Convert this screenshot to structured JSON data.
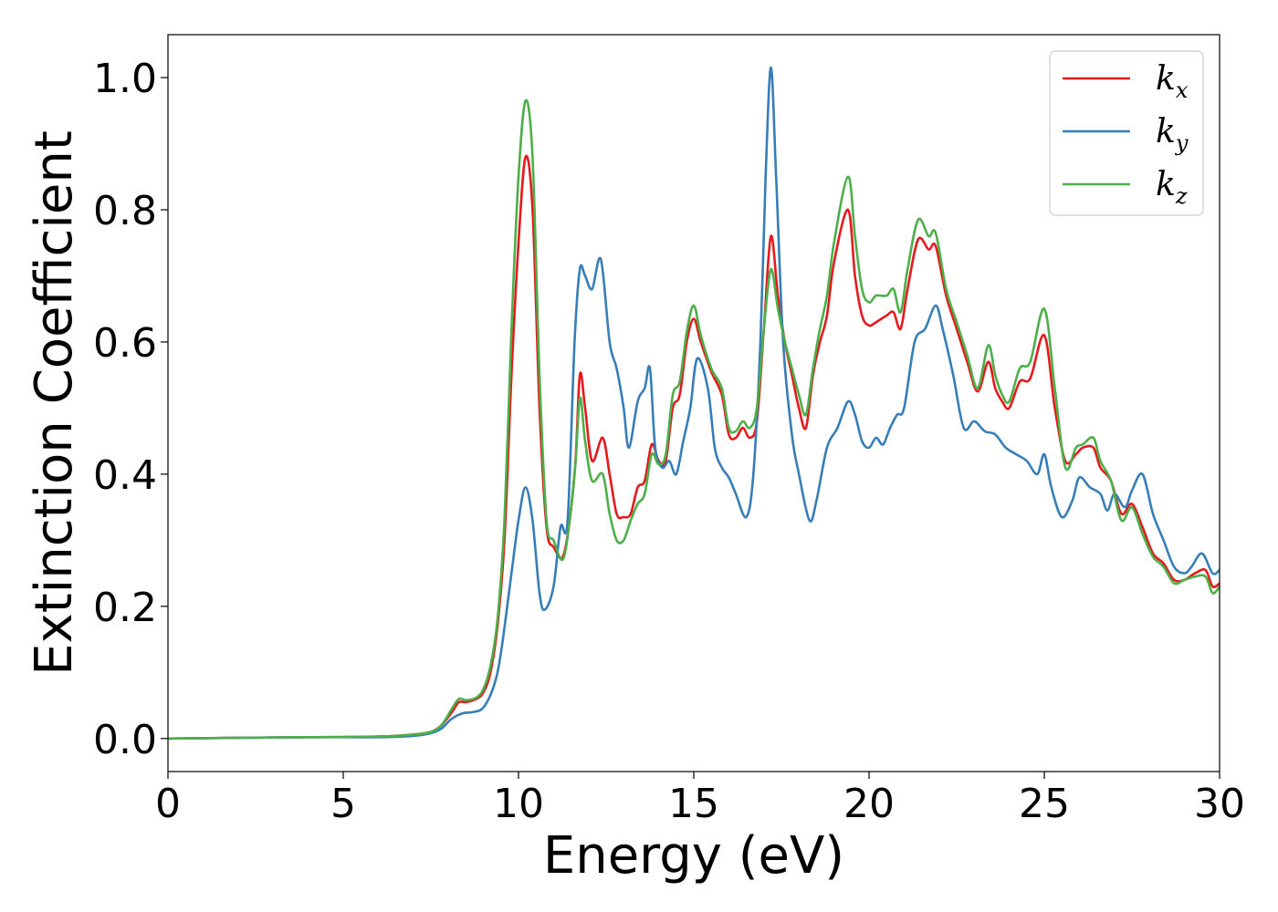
{
  "chart_data": {
    "type": "line",
    "title": "",
    "xlabel": "Energy (eV)",
    "ylabel": "Extinction Coefficient",
    "xlim": [
      0,
      30
    ],
    "ylim": [
      -0.05,
      1.065
    ],
    "xticks": [
      "0",
      "5",
      "10",
      "15",
      "20",
      "25",
      "30"
    ],
    "yticks": [
      "0.0",
      "0.2",
      "0.4",
      "0.6",
      "0.8",
      "1.0"
    ],
    "grid": false,
    "legend_position": "top-right",
    "series": [
      {
        "name": "k_x",
        "legend_base": "k",
        "legend_sub": "x",
        "color": "#e41a1c",
        "points": [
          [
            0,
            0
          ],
          [
            2,
            0.001
          ],
          [
            4,
            0.002
          ],
          [
            6,
            0.003
          ],
          [
            7,
            0.006
          ],
          [
            7.5,
            0.01
          ],
          [
            7.8,
            0.02
          ],
          [
            8.1,
            0.04
          ],
          [
            8.3,
            0.055
          ],
          [
            8.5,
            0.055
          ],
          [
            8.8,
            0.06
          ],
          [
            9.0,
            0.07
          ],
          [
            9.2,
            0.1
          ],
          [
            9.4,
            0.17
          ],
          [
            9.6,
            0.3
          ],
          [
            9.8,
            0.55
          ],
          [
            10.0,
            0.75
          ],
          [
            10.2,
            0.88
          ],
          [
            10.4,
            0.8
          ],
          [
            10.6,
            0.5
          ],
          [
            10.8,
            0.32
          ],
          [
            11.0,
            0.29
          ],
          [
            11.3,
            0.28
          ],
          [
            11.6,
            0.4
          ],
          [
            11.75,
            0.55
          ],
          [
            11.9,
            0.5
          ],
          [
            12.1,
            0.42
          ],
          [
            12.4,
            0.455
          ],
          [
            12.6,
            0.4
          ],
          [
            12.8,
            0.34
          ],
          [
            13.0,
            0.335
          ],
          [
            13.2,
            0.34
          ],
          [
            13.4,
            0.38
          ],
          [
            13.6,
            0.39
          ],
          [
            13.8,
            0.445
          ],
          [
            14.0,
            0.42
          ],
          [
            14.2,
            0.42
          ],
          [
            14.4,
            0.5
          ],
          [
            14.6,
            0.52
          ],
          [
            14.8,
            0.6
          ],
          [
            15.0,
            0.635
          ],
          [
            15.2,
            0.6
          ],
          [
            15.5,
            0.555
          ],
          [
            15.8,
            0.52
          ],
          [
            16.0,
            0.46
          ],
          [
            16.2,
            0.455
          ],
          [
            16.4,
            0.47
          ],
          [
            16.6,
            0.455
          ],
          [
            16.8,
            0.48
          ],
          [
            17.0,
            0.62
          ],
          [
            17.2,
            0.76
          ],
          [
            17.4,
            0.67
          ],
          [
            17.6,
            0.6
          ],
          [
            17.8,
            0.55
          ],
          [
            18.0,
            0.5
          ],
          [
            18.2,
            0.47
          ],
          [
            18.4,
            0.55
          ],
          [
            18.6,
            0.6
          ],
          [
            18.8,
            0.64
          ],
          [
            19.0,
            0.72
          ],
          [
            19.4,
            0.8
          ],
          [
            19.6,
            0.7
          ],
          [
            19.8,
            0.64
          ],
          [
            20.0,
            0.625
          ],
          [
            20.2,
            0.63
          ],
          [
            20.5,
            0.64
          ],
          [
            20.7,
            0.645
          ],
          [
            20.9,
            0.62
          ],
          [
            21.1,
            0.68
          ],
          [
            21.4,
            0.755
          ],
          [
            21.7,
            0.74
          ],
          [
            21.9,
            0.745
          ],
          [
            22.2,
            0.67
          ],
          [
            22.5,
            0.62
          ],
          [
            22.8,
            0.57
          ],
          [
            23.1,
            0.525
          ],
          [
            23.4,
            0.57
          ],
          [
            23.6,
            0.53
          ],
          [
            23.8,
            0.51
          ],
          [
            24.0,
            0.5
          ],
          [
            24.3,
            0.54
          ],
          [
            24.6,
            0.545
          ],
          [
            25.0,
            0.61
          ],
          [
            25.3,
            0.5
          ],
          [
            25.6,
            0.42
          ],
          [
            25.9,
            0.43
          ],
          [
            26.1,
            0.44
          ],
          [
            26.4,
            0.44
          ],
          [
            26.6,
            0.41
          ],
          [
            26.9,
            0.39
          ],
          [
            27.2,
            0.34
          ],
          [
            27.5,
            0.355
          ],
          [
            27.8,
            0.32
          ],
          [
            28.1,
            0.28
          ],
          [
            28.4,
            0.265
          ],
          [
            28.7,
            0.24
          ],
          [
            29.0,
            0.24
          ],
          [
            29.3,
            0.25
          ],
          [
            29.6,
            0.255
          ],
          [
            29.8,
            0.23
          ],
          [
            30.0,
            0.235
          ]
        ]
      },
      {
        "name": "k_y",
        "legend_base": "k",
        "legend_sub": "y",
        "color": "#377eb8",
        "points": [
          [
            0,
            0
          ],
          [
            2,
            0.001
          ],
          [
            4,
            0.002
          ],
          [
            6,
            0.002
          ],
          [
            7,
            0.004
          ],
          [
            7.5,
            0.008
          ],
          [
            7.8,
            0.015
          ],
          [
            8.1,
            0.03
          ],
          [
            8.4,
            0.038
          ],
          [
            8.7,
            0.04
          ],
          [
            9.0,
            0.047
          ],
          [
            9.3,
            0.08
          ],
          [
            9.5,
            0.13
          ],
          [
            9.8,
            0.25
          ],
          [
            10.0,
            0.33
          ],
          [
            10.2,
            0.38
          ],
          [
            10.4,
            0.33
          ],
          [
            10.6,
            0.22
          ],
          [
            10.75,
            0.195
          ],
          [
            11.0,
            0.23
          ],
          [
            11.2,
            0.32
          ],
          [
            11.4,
            0.33
          ],
          [
            11.6,
            0.6
          ],
          [
            11.75,
            0.71
          ],
          [
            11.9,
            0.7
          ],
          [
            12.1,
            0.68
          ],
          [
            12.35,
            0.725
          ],
          [
            12.6,
            0.6
          ],
          [
            12.8,
            0.56
          ],
          [
            13.0,
            0.5
          ],
          [
            13.15,
            0.44
          ],
          [
            13.4,
            0.51
          ],
          [
            13.6,
            0.53
          ],
          [
            13.75,
            0.56
          ],
          [
            13.9,
            0.44
          ],
          [
            14.1,
            0.41
          ],
          [
            14.3,
            0.42
          ],
          [
            14.5,
            0.4
          ],
          [
            14.7,
            0.45
          ],
          [
            14.9,
            0.5
          ],
          [
            15.1,
            0.575
          ],
          [
            15.4,
            0.53
          ],
          [
            15.6,
            0.44
          ],
          [
            15.8,
            0.41
          ],
          [
            16.0,
            0.395
          ],
          [
            16.2,
            0.37
          ],
          [
            16.5,
            0.335
          ],
          [
            16.7,
            0.4
          ],
          [
            16.9,
            0.6
          ],
          [
            17.05,
            0.85
          ],
          [
            17.2,
            1.015
          ],
          [
            17.35,
            0.85
          ],
          [
            17.55,
            0.6
          ],
          [
            17.8,
            0.46
          ],
          [
            18.0,
            0.4
          ],
          [
            18.3,
            0.33
          ],
          [
            18.5,
            0.36
          ],
          [
            18.8,
            0.44
          ],
          [
            19.1,
            0.47
          ],
          [
            19.4,
            0.51
          ],
          [
            19.6,
            0.49
          ],
          [
            19.8,
            0.45
          ],
          [
            20.0,
            0.44
          ],
          [
            20.2,
            0.455
          ],
          [
            20.4,
            0.445
          ],
          [
            20.6,
            0.47
          ],
          [
            20.8,
            0.49
          ],
          [
            21.0,
            0.5
          ],
          [
            21.3,
            0.6
          ],
          [
            21.6,
            0.62
          ],
          [
            21.9,
            0.655
          ],
          [
            22.1,
            0.62
          ],
          [
            22.4,
            0.55
          ],
          [
            22.7,
            0.47
          ],
          [
            23.0,
            0.48
          ],
          [
            23.3,
            0.465
          ],
          [
            23.6,
            0.46
          ],
          [
            23.9,
            0.44
          ],
          [
            24.2,
            0.43
          ],
          [
            24.5,
            0.42
          ],
          [
            24.8,
            0.4
          ],
          [
            25.0,
            0.43
          ],
          [
            25.2,
            0.38
          ],
          [
            25.5,
            0.335
          ],
          [
            25.8,
            0.36
          ],
          [
            26.0,
            0.395
          ],
          [
            26.3,
            0.38
          ],
          [
            26.6,
            0.37
          ],
          [
            26.8,
            0.345
          ],
          [
            27.0,
            0.37
          ],
          [
            27.3,
            0.35
          ],
          [
            27.5,
            0.375
          ],
          [
            27.8,
            0.4
          ],
          [
            28.1,
            0.34
          ],
          [
            28.4,
            0.3
          ],
          [
            28.7,
            0.26
          ],
          [
            29.0,
            0.25
          ],
          [
            29.2,
            0.26
          ],
          [
            29.5,
            0.28
          ],
          [
            29.8,
            0.25
          ],
          [
            30.0,
            0.255
          ]
        ]
      },
      {
        "name": "k_z",
        "legend_base": "k",
        "legend_sub": "z",
        "color": "#4daf4a",
        "points": [
          [
            0,
            0
          ],
          [
            2,
            0.001
          ],
          [
            4,
            0.002
          ],
          [
            6,
            0.003
          ],
          [
            7,
            0.006
          ],
          [
            7.5,
            0.01
          ],
          [
            7.8,
            0.02
          ],
          [
            8.1,
            0.045
          ],
          [
            8.3,
            0.06
          ],
          [
            8.5,
            0.058
          ],
          [
            8.8,
            0.062
          ],
          [
            9.0,
            0.075
          ],
          [
            9.2,
            0.11
          ],
          [
            9.4,
            0.18
          ],
          [
            9.6,
            0.33
          ],
          [
            9.8,
            0.62
          ],
          [
            10.0,
            0.85
          ],
          [
            10.2,
            0.965
          ],
          [
            10.4,
            0.88
          ],
          [
            10.6,
            0.55
          ],
          [
            10.8,
            0.33
          ],
          [
            11.0,
            0.3
          ],
          [
            11.3,
            0.275
          ],
          [
            11.6,
            0.4
          ],
          [
            11.75,
            0.515
          ],
          [
            11.9,
            0.45
          ],
          [
            12.1,
            0.39
          ],
          [
            12.4,
            0.4
          ],
          [
            12.6,
            0.34
          ],
          [
            12.8,
            0.3
          ],
          [
            13.0,
            0.3
          ],
          [
            13.2,
            0.33
          ],
          [
            13.4,
            0.355
          ],
          [
            13.6,
            0.37
          ],
          [
            13.8,
            0.43
          ],
          [
            14.0,
            0.415
          ],
          [
            14.2,
            0.43
          ],
          [
            14.4,
            0.52
          ],
          [
            14.6,
            0.54
          ],
          [
            14.8,
            0.615
          ],
          [
            15.0,
            0.655
          ],
          [
            15.2,
            0.61
          ],
          [
            15.5,
            0.56
          ],
          [
            15.8,
            0.53
          ],
          [
            16.0,
            0.47
          ],
          [
            16.2,
            0.465
          ],
          [
            16.4,
            0.48
          ],
          [
            16.6,
            0.47
          ],
          [
            16.8,
            0.5
          ],
          [
            17.0,
            0.62
          ],
          [
            17.2,
            0.71
          ],
          [
            17.4,
            0.65
          ],
          [
            17.6,
            0.6
          ],
          [
            17.8,
            0.56
          ],
          [
            18.0,
            0.52
          ],
          [
            18.2,
            0.49
          ],
          [
            18.4,
            0.56
          ],
          [
            18.6,
            0.62
          ],
          [
            18.8,
            0.67
          ],
          [
            19.0,
            0.75
          ],
          [
            19.4,
            0.85
          ],
          [
            19.6,
            0.76
          ],
          [
            19.8,
            0.68
          ],
          [
            20.0,
            0.66
          ],
          [
            20.2,
            0.67
          ],
          [
            20.5,
            0.67
          ],
          [
            20.7,
            0.68
          ],
          [
            20.9,
            0.645
          ],
          [
            21.1,
            0.71
          ],
          [
            21.4,
            0.785
          ],
          [
            21.7,
            0.76
          ],
          [
            21.9,
            0.765
          ],
          [
            22.2,
            0.68
          ],
          [
            22.5,
            0.63
          ],
          [
            22.8,
            0.58
          ],
          [
            23.1,
            0.53
          ],
          [
            23.4,
            0.595
          ],
          [
            23.6,
            0.55
          ],
          [
            23.8,
            0.52
          ],
          [
            24.0,
            0.51
          ],
          [
            24.3,
            0.56
          ],
          [
            24.6,
            0.57
          ],
          [
            25.0,
            0.65
          ],
          [
            25.3,
            0.53
          ],
          [
            25.6,
            0.41
          ],
          [
            25.9,
            0.44
          ],
          [
            26.1,
            0.445
          ],
          [
            26.4,
            0.455
          ],
          [
            26.6,
            0.42
          ],
          [
            26.9,
            0.39
          ],
          [
            27.2,
            0.33
          ],
          [
            27.5,
            0.35
          ],
          [
            27.8,
            0.31
          ],
          [
            28.1,
            0.275
          ],
          [
            28.4,
            0.26
          ],
          [
            28.7,
            0.235
          ],
          [
            29.0,
            0.24
          ],
          [
            29.3,
            0.245
          ],
          [
            29.6,
            0.245
          ],
          [
            29.8,
            0.22
          ],
          [
            30.0,
            0.23
          ]
        ]
      }
    ]
  }
}
